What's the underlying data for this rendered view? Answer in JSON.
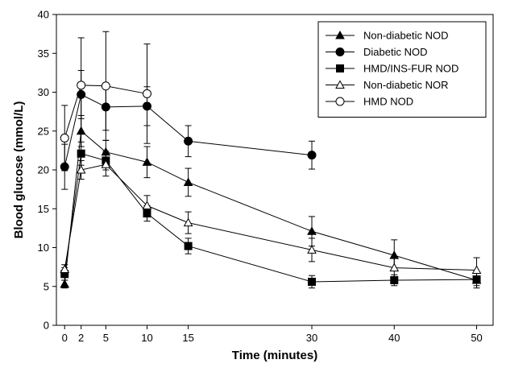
{
  "chart_data": {
    "type": "line",
    "xlabel": "Time (minutes)",
    "ylabel": "Blood glucose (mmol/L)",
    "xlim": [
      -1,
      52
    ],
    "ylim": [
      0,
      40
    ],
    "x_ticks": [
      0,
      2,
      5,
      10,
      15,
      30,
      40,
      50
    ],
    "y_ticks": [
      0,
      5,
      10,
      15,
      20,
      25,
      30,
      35,
      40
    ],
    "grid": false,
    "legend_position": "top-right",
    "series": [
      {
        "name": "Non-diabetic NOD",
        "marker": "filled-triangle",
        "x": [
          0,
          2,
          5,
          10,
          15,
          30,
          40,
          50
        ],
        "y": [
          5.3,
          25.0,
          22.3,
          21.0,
          18.4,
          12.1,
          9.0,
          5.8
        ],
        "err": [
          0.5,
          2.0,
          1.5,
          2.0,
          1.8,
          1.9,
          2.0,
          1.0
        ]
      },
      {
        "name": "Diabetic NOD",
        "marker": "filled-circle",
        "x": [
          0,
          2,
          5,
          10,
          15,
          30
        ],
        "y": [
          20.4,
          29.7,
          28.1,
          28.2,
          23.7,
          21.9
        ],
        "err": [
          2.9,
          3.1,
          3.0,
          2.5,
          2.0,
          1.8
        ]
      },
      {
        "name": "HMD/INS-FUR NOD",
        "marker": "filled-square",
        "x": [
          0,
          2,
          5,
          10,
          15,
          30,
          40,
          50
        ],
        "y": [
          6.6,
          22.1,
          21.2,
          14.4,
          10.2,
          5.6,
          5.8,
          5.9
        ],
        "err": [
          0.8,
          1.5,
          1.2,
          1.0,
          1.0,
          0.8,
          0.7,
          0.8
        ]
      },
      {
        "name": "Non-diabetic NOR",
        "marker": "open-triangle",
        "x": [
          0,
          2,
          5,
          10,
          15,
          30,
          40,
          50
        ],
        "y": [
          7.2,
          20.0,
          20.7,
          15.4,
          13.2,
          9.7,
          7.4,
          7.1
        ],
        "err": [
          0.6,
          1.2,
          1.5,
          1.3,
          1.4,
          1.5,
          1.2,
          1.6
        ]
      },
      {
        "name": "HMD NOD",
        "marker": "open-circle",
        "x": [
          0,
          2,
          5,
          10
        ],
        "y": [
          24.1,
          30.9,
          30.8,
          29.8
        ],
        "err": [
          4.2,
          6.1,
          7.0,
          6.4
        ]
      }
    ]
  }
}
